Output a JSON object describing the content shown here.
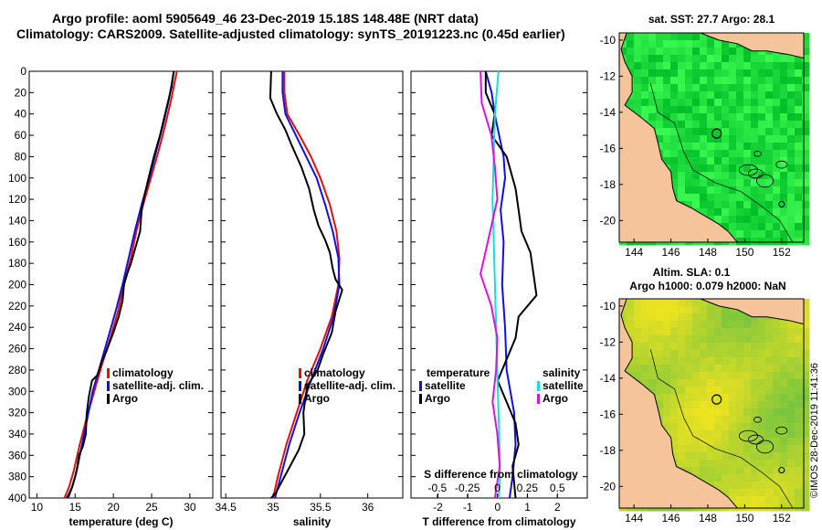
{
  "title": {
    "line1": "Argo profile: aoml 5905649_46 23-Dec-2019 15.18S 148.48E (NRT data)",
    "line2": "Climatology: CARS2009. Satellite-adjusted climatology: synTS_20191223.nc (0.45d earlier)"
  },
  "credit": "©IMOS 28-Dec-2019 11:41:36",
  "colors": {
    "climatology": "#e01010",
    "satellite": "#1010e0",
    "argo": "#000000",
    "sat_salinity": "#10e0e0",
    "argo_salinity": "#e010e0",
    "land": "#f5c49a",
    "sea": "#3ec83e"
  },
  "chart_data": [
    {
      "type": "line",
      "name": "temperature-profile",
      "xlabel": "temperature (deg C)",
      "ylabel": "depth",
      "xlim": [
        9,
        33
      ],
      "ylim": [
        400,
        0
      ],
      "xticks": [
        10,
        15,
        20,
        25,
        30
      ],
      "yticks": [
        0,
        20,
        40,
        60,
        80,
        100,
        120,
        140,
        160,
        180,
        200,
        220,
        240,
        260,
        280,
        300,
        320,
        340,
        360,
        380,
        400
      ],
      "legend": [
        "climatology",
        "satellite-adj. clim.",
        "Argo"
      ],
      "series": [
        {
          "name": "climatology",
          "color": "#e01010",
          "x": [
            28.3,
            27.6,
            26.8,
            25.9,
            24.9,
            23.9,
            23.0,
            22.3,
            21.4,
            20.6,
            19.6,
            18.5,
            17.5,
            16.5,
            15.6,
            14.8,
            14.2,
            13.6
          ],
          "y": [
            0,
            25,
            50,
            75,
            100,
            125,
            150,
            175,
            200,
            225,
            250,
            275,
            300,
            325,
            350,
            375,
            390,
            400
          ]
        },
        {
          "name": "satellite-adj. clim.",
          "color": "#1010e0",
          "x": [
            27.9,
            27.3,
            26.5,
            25.6,
            24.7,
            23.7,
            22.8,
            22.0,
            21.2,
            20.3,
            19.3,
            18.3,
            17.3,
            16.6,
            15.9,
            15.2,
            14.6,
            14.1
          ],
          "y": [
            0,
            25,
            50,
            75,
            100,
            125,
            150,
            175,
            200,
            225,
            250,
            275,
            300,
            325,
            350,
            375,
            390,
            400
          ]
        },
        {
          "name": "Argo",
          "color": "#000000",
          "x": [
            27.9,
            27.6,
            27.1,
            26.6,
            26.1,
            25.3,
            24.6,
            24.1,
            23.7,
            23.5,
            22.9,
            22.3,
            21.8,
            21.4,
            21.2,
            20.7,
            20.0,
            19.1,
            18.5,
            17.9,
            17.2,
            16.8,
            16.5,
            16.4,
            16.0,
            15.5,
            15.3,
            15.0,
            14.6,
            14.2,
            13.9
          ],
          "y": [
            0,
            15,
            30,
            45,
            60,
            80,
            100,
            115,
            130,
            150,
            165,
            180,
            190,
            200,
            215,
            230,
            245,
            262,
            272,
            285,
            290,
            305,
            322,
            340,
            352,
            360,
            370,
            380,
            390,
            396,
            400
          ]
        }
      ]
    },
    {
      "type": "line",
      "name": "salinity-profile",
      "xlabel": "salinity",
      "xlim": [
        34.45,
        36.37
      ],
      "ylim": [
        400,
        0
      ],
      "xticks": [
        34.5,
        35,
        35.5,
        36
      ],
      "xticklabels": [
        "34.5",
        "35",
        "35.5",
        "36"
      ],
      "legend": [
        "climatology",
        "satellite-adj. clim.",
        "Argo"
      ],
      "series": [
        {
          "name": "climatology",
          "color": "#e01010",
          "x": [
            35.12,
            35.12,
            35.15,
            35.28,
            35.4,
            35.5,
            35.6,
            35.67,
            35.7,
            35.69,
            35.62,
            35.5,
            35.36,
            35.25,
            35.14,
            35.05,
            35.0
          ],
          "y": [
            0,
            20,
            40,
            60,
            80,
            100,
            125,
            150,
            175,
            200,
            230,
            260,
            290,
            320,
            350,
            380,
            400
          ]
        },
        {
          "name": "satellite-adj. clim.",
          "color": "#1010e0",
          "x": [
            35.1,
            35.1,
            35.13,
            35.24,
            35.35,
            35.46,
            35.55,
            35.63,
            35.69,
            35.7,
            35.64,
            35.53,
            35.4,
            35.28,
            35.17,
            35.08,
            35.02
          ],
          "y": [
            0,
            20,
            40,
            60,
            80,
            100,
            125,
            150,
            175,
            200,
            230,
            260,
            290,
            320,
            350,
            380,
            400
          ]
        },
        {
          "name": "Argo",
          "color": "#000000",
          "x": [
            34.98,
            34.97,
            35.04,
            35.13,
            35.2,
            35.3,
            35.38,
            35.43,
            35.48,
            35.55,
            35.6,
            35.63,
            35.66,
            35.73,
            35.66,
            35.62,
            35.53,
            35.47,
            35.36,
            35.32,
            35.33,
            35.27,
            35.18,
            35.12,
            35.03,
            34.98
          ],
          "y": [
            0,
            25,
            40,
            55,
            70,
            90,
            110,
            130,
            145,
            158,
            170,
            185,
            195,
            205,
            225,
            245,
            265,
            280,
            295,
            320,
            340,
            355,
            370,
            380,
            395,
            400
          ]
        }
      ]
    },
    {
      "type": "line",
      "name": "difference-profile",
      "xlabel": "T difference from climatology",
      "xlim": [
        -2.9,
        3.0
      ],
      "xticks": [
        -2,
        -1,
        0,
        1,
        2
      ],
      "x2label": "S difference from climatology",
      "x2lim": [
        -0.72,
        0.75
      ],
      "x2ticks": [
        -0.5,
        -0.25,
        0,
        0.25,
        0.5
      ],
      "x2ticklabels": [
        "-0.5",
        "-0.25",
        "0",
        "0.25",
        "0.5"
      ],
      "legend_left": {
        "title": "temperature",
        "items": [
          "satellite",
          "Argo"
        ]
      },
      "legend_right": {
        "title": "salinity",
        "items": [
          "satellite",
          "Argo"
        ]
      },
      "series": [
        {
          "name": "T satellite",
          "color": "#1010e0",
          "x": [
            -0.4,
            -0.2,
            -0.1,
            0.05,
            0.2,
            0.25,
            0.1,
            0.2,
            0.15,
            0.25,
            0.3,
            0.55,
            0.6,
            0.5,
            0.4
          ],
          "y": [
            0,
            20,
            40,
            60,
            80,
            100,
            130,
            160,
            200,
            240,
            280,
            320,
            350,
            380,
            400
          ]
        },
        {
          "name": "T Argo",
          "color": "#000000",
          "x": [
            -0.4,
            -0.4,
            -0.1,
            -0.2,
            0.3,
            0.6,
            0.7,
            0.8,
            1.1,
            1.2,
            1.3,
            0.7,
            0.6,
            0.3,
            0.0,
            0.6,
            0.7,
            0.5,
            0.6
          ],
          "y": [
            0,
            20,
            40,
            60,
            80,
            110,
            130,
            150,
            170,
            190,
            210,
            230,
            250,
            270,
            290,
            330,
            350,
            370,
            400
          ]
        },
        {
          "name": "S satellite",
          "color": "#10e0e0",
          "x": [
            0.01,
            -0.02,
            -0.03,
            -0.04,
            -0.03,
            -0.02,
            -0.01,
            0.0,
            0.01,
            0.02,
            0.02,
            0.01
          ],
          "y": [
            0,
            40,
            80,
            120,
            160,
            200,
            240,
            280,
            320,
            360,
            390,
            400
          ]
        },
        {
          "name": "S Argo",
          "color": "#e010e0",
          "x": [
            -0.14,
            -0.13,
            -0.05,
            -0.02,
            0.0,
            -0.06,
            -0.1,
            -0.14,
            -0.05,
            0.0,
            -0.01,
            -0.04,
            0.0,
            0.02,
            -0.02
          ],
          "y": [
            0,
            30,
            60,
            90,
            120,
            150,
            170,
            190,
            220,
            250,
            280,
            310,
            340,
            370,
            400
          ]
        }
      ]
    },
    {
      "type": "heatmap",
      "name": "sst-map",
      "title": "sat. SST: 27.7 Argo: 28.1",
      "xlim": [
        143.2,
        153.2
      ],
      "ylim": [
        -21.2,
        -9.6
      ],
      "xticks": [
        144,
        146,
        148,
        150,
        152
      ],
      "yticks": [
        -10,
        -12,
        -14,
        -16,
        -18,
        -20
      ],
      "argo_position": {
        "lon": 148.48,
        "lat": -15.18
      }
    },
    {
      "type": "heatmap",
      "name": "sla-map",
      "title": "Altim. SLA: 0.1",
      "subtitle": "Argo h1000: 0.079 h2000: NaN",
      "xlim": [
        143.2,
        153.2
      ],
      "ylim": [
        -21.2,
        -9.6
      ],
      "xticks": [
        144,
        146,
        148,
        150,
        152
      ],
      "yticks": [
        -10,
        -12,
        -14,
        -16,
        -18,
        -20
      ],
      "argo_position": {
        "lon": 148.48,
        "lat": -15.18
      }
    }
  ]
}
